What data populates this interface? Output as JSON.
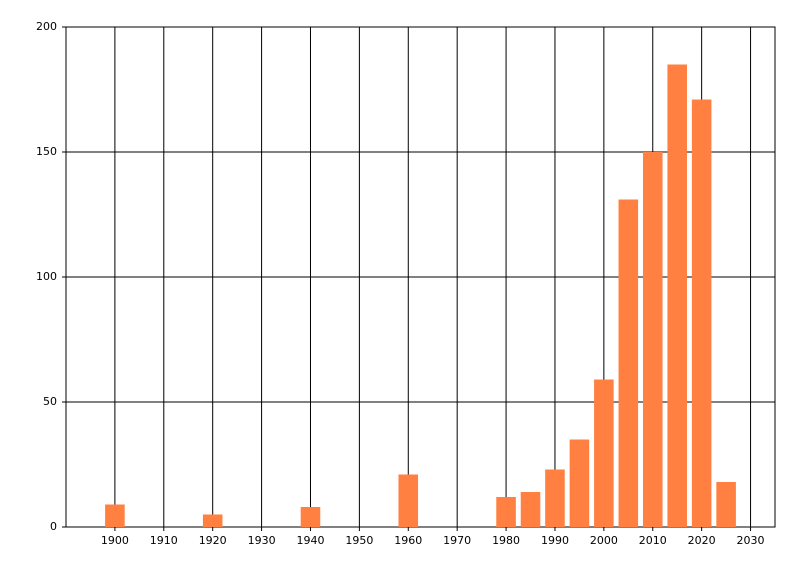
{
  "chart_data": {
    "type": "bar",
    "x": [
      1900,
      1920,
      1940,
      1960,
      1980,
      1985,
      1990,
      1995,
      2000,
      2005,
      2010,
      2015,
      2020,
      2025
    ],
    "values": [
      9,
      5,
      8,
      21,
      12,
      14,
      23,
      35,
      59,
      131,
      150,
      185,
      171,
      18
    ],
    "color": "#ff8040",
    "xlim": [
      1890,
      2035
    ],
    "xticks": [
      1900,
      1910,
      1920,
      1930,
      1940,
      1950,
      1960,
      1970,
      1980,
      1990,
      2000,
      2010,
      2020,
      2030
    ],
    "ylim": [
      0,
      200
    ],
    "yticks": [
      0,
      50,
      100,
      150,
      200
    ],
    "grid": true
  }
}
